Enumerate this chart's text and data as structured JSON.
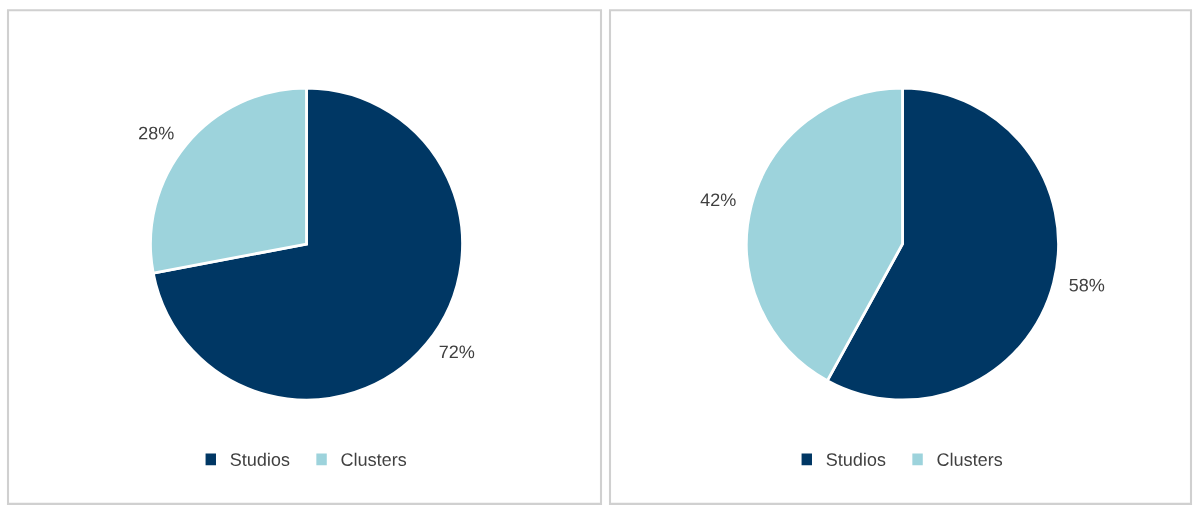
{
  "chart_data": [
    {
      "type": "pie",
      "categories": [
        "Studios",
        "Clusters"
      ],
      "values": [
        72,
        28
      ],
      "colors": [
        "#003764",
        "#9dd3dc"
      ],
      "value_labels": [
        "72%",
        "28%"
      ],
      "legend": "bottom"
    },
    {
      "type": "pie",
      "categories": [
        "Studios",
        "Clusters"
      ],
      "values": [
        58,
        42
      ],
      "colors": [
        "#003764",
        "#9dd3dc"
      ],
      "value_labels": [
        "58%",
        "42%"
      ],
      "legend": "bottom"
    }
  ]
}
